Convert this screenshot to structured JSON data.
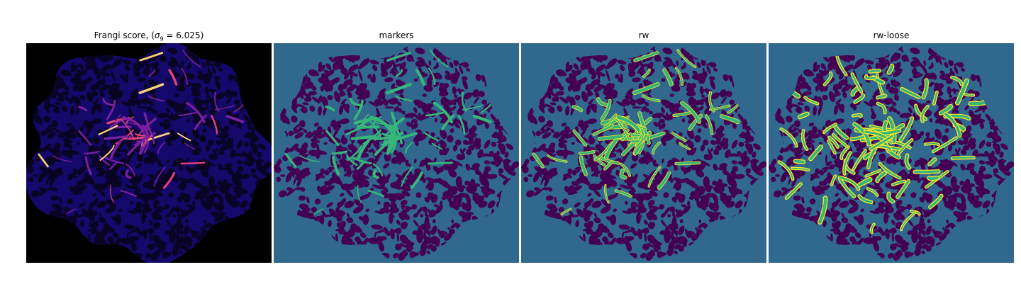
{
  "figure": {
    "panels": [
      {
        "id": "frangi",
        "title_prefix": "Frangi score, (",
        "title_sigma": "σ",
        "title_sub": "9",
        "title_suffix": " = 6.025)",
        "colormap": "magma",
        "colors": {
          "background": "#000000",
          "mask": "#14086b",
          "mask_dark": "#0a0424",
          "ridge_mid": "#7a1fa2",
          "ridge_high": "#e0427a",
          "ridge_peak": "#fcd27c"
        }
      },
      {
        "id": "markers",
        "title": "markers",
        "colormap": "viridis",
        "colors": {
          "background": "#31688e",
          "holes": "#440154",
          "foreground": "#35b779"
        }
      },
      {
        "id": "rw",
        "title": "rw",
        "colormap": "viridis",
        "colors": {
          "background": "#31688e",
          "holes": "#440154",
          "foreground": "#35b779",
          "edge": "#fde725"
        }
      },
      {
        "id": "rw-loose",
        "title": "rw-loose",
        "colormap": "viridis",
        "colors": {
          "background": "#31688e",
          "holes": "#440154",
          "foreground": "#35b779",
          "edge": "#fde725"
        }
      }
    ]
  }
}
